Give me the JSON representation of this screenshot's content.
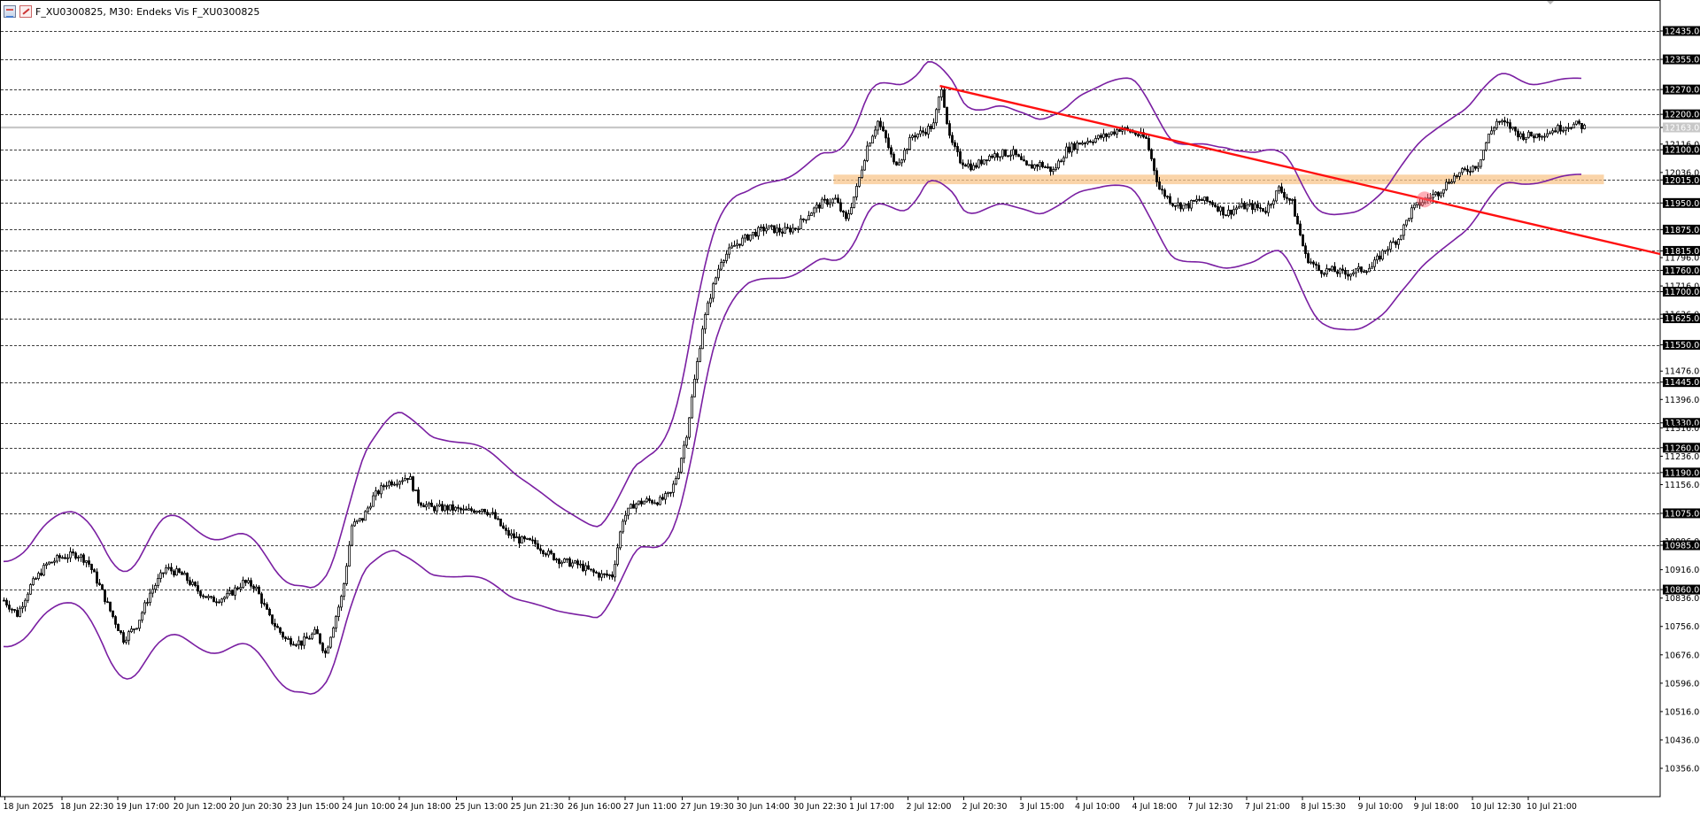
{
  "window": {
    "title": "F_XU0300825, M30:  Endeks Vis F_XU0300825",
    "chart_icon": "chart-window-icon",
    "edit_icon": "edit-pencil-icon"
  },
  "colors": {
    "background": "#ffffff",
    "grid": "#000000",
    "candle": "#000000",
    "bollinger": "#7a1fa2",
    "trendline": "#ff1010",
    "zone": "#f8c58c",
    "marker": "#ff6b7a",
    "current_price_line": "#c8c8c8",
    "current_price_label_bg": "#c8c8c8"
  },
  "chart_data": {
    "type": "candlestick",
    "symbol": "F_XU0300825",
    "timeframe": "M30",
    "y_axis_labels": [
      "12435.00",
      "12355.00",
      "12270.00",
      "12200.00",
      "12163.00",
      "12116.00",
      "12100.00",
      "12036.00",
      "12015.00",
      "11950.00",
      "11875.00",
      "11815.00",
      "11796.00",
      "11760.00",
      "11716.00",
      "11700.00",
      "11636.00",
      "11625.00",
      "11550.00",
      "11476.00",
      "11445.00",
      "11396.00",
      "11330.00",
      "11316.00",
      "11260.00",
      "11236.00",
      "11190.00",
      "11156.00",
      "11075.00",
      "10996.00",
      "10985.00",
      "10916.00",
      "10860.00",
      "10836.00",
      "10756.00",
      "10676.00",
      "10596.00",
      "10516.00",
      "10436.00",
      "10356.00"
    ],
    "highlighted_levels": [
      "12435.00",
      "12355.00",
      "12270.00",
      "12200.00",
      "12100.00",
      "12015.00",
      "11950.00",
      "11875.00",
      "11815.00",
      "11760.00",
      "11700.00",
      "11625.00",
      "11550.00",
      "11445.00",
      "11330.00",
      "11260.00",
      "11190.00",
      "11075.00",
      "10985.00",
      "10860.00"
    ],
    "horizontal_levels": [
      12435,
      12355,
      12270,
      12200,
      12100,
      12015,
      11950,
      11875,
      11815,
      11760,
      11700,
      11625,
      11550,
      11445,
      11330,
      11260,
      11190,
      11075,
      10985,
      10860
    ],
    "current_price": "12163.00",
    "current_price_value": 12163,
    "y_range": [
      10310,
      12480
    ],
    "x_axis_labels": [
      "18 Jun 2025",
      "18 Jun 22:30",
      "19 Jun 17:00",
      "20 Jun 12:00",
      "20 Jun 20:30",
      "23 Jun 15:00",
      "24 Jun 10:00",
      "24 Jun 18:00",
      "25 Jun 13:00",
      "25 Jun 21:30",
      "26 Jun 16:00",
      "27 Jun 11:00",
      "27 Jun 19:30",
      "30 Jun 14:00",
      "30 Jun 22:30",
      "1 Jul 17:00",
      "2 Jul 12:00",
      "2 Jul 20:30",
      "3 Jul 15:00",
      "4 Jul 10:00",
      "4 Jul 18:00",
      "7 Jul 12:30",
      "7 Jul 21:00",
      "8 Jul 15:30",
      "9 Jul 10:00",
      "9 Jul 18:00",
      "10 Jul 12:30",
      "10 Jul 21:00"
    ],
    "price_path": [
      [
        0,
        10830
      ],
      [
        10,
        10790
      ],
      [
        20,
        10870
      ],
      [
        32,
        10930
      ],
      [
        42,
        10950
      ],
      [
        55,
        10960
      ],
      [
        63,
        10940
      ],
      [
        72,
        10870
      ],
      [
        80,
        10800
      ],
      [
        90,
        10720
      ],
      [
        100,
        10760
      ],
      [
        110,
        10850
      ],
      [
        122,
        10920
      ],
      [
        135,
        10900
      ],
      [
        145,
        10860
      ],
      [
        156,
        10830
      ],
      [
        168,
        10840
      ],
      [
        180,
        10880
      ],
      [
        189,
        10870
      ],
      [
        200,
        10780
      ],
      [
        212,
        10720
      ],
      [
        224,
        10710
      ],
      [
        235,
        10740
      ],
      [
        242,
        10680
      ],
      [
        248,
        10760
      ],
      [
        255,
        10850
      ],
      [
        262,
        11040
      ],
      [
        270,
        11060
      ],
      [
        278,
        11120
      ],
      [
        288,
        11160
      ],
      [
        298,
        11170
      ],
      [
        305,
        11180
      ],
      [
        312,
        11110
      ],
      [
        322,
        11090
      ],
      [
        335,
        11090
      ],
      [
        348,
        11080
      ],
      [
        360,
        11090
      ],
      [
        368,
        11070
      ],
      [
        378,
        11020
      ],
      [
        388,
        11000
      ],
      [
        400,
        10990
      ],
      [
        410,
        10960
      ],
      [
        420,
        10940
      ],
      [
        432,
        10930
      ],
      [
        442,
        10910
      ],
      [
        450,
        10900
      ],
      [
        458,
        10900
      ],
      [
        466,
        11060
      ],
      [
        474,
        11100
      ],
      [
        484,
        11110
      ],
      [
        494,
        11110
      ],
      [
        502,
        11130
      ],
      [
        508,
        11200
      ],
      [
        514,
        11300
      ],
      [
        520,
        11450
      ],
      [
        526,
        11600
      ],
      [
        532,
        11690
      ],
      [
        540,
        11790
      ],
      [
        550,
        11830
      ],
      [
        562,
        11860
      ],
      [
        574,
        11880
      ],
      [
        586,
        11870
      ],
      [
        596,
        11880
      ],
      [
        606,
        11920
      ],
      [
        616,
        11950
      ],
      [
        626,
        11960
      ],
      [
        634,
        11900
      ],
      [
        642,
        11990
      ],
      [
        650,
        12110
      ],
      [
        658,
        12180
      ],
      [
        664,
        12130
      ],
      [
        670,
        12060
      ],
      [
        676,
        12080
      ],
      [
        684,
        12140
      ],
      [
        692,
        12150
      ],
      [
        700,
        12170
      ],
      [
        706,
        12280
      ],
      [
        712,
        12130
      ],
      [
        720,
        12070
      ],
      [
        730,
        12050
      ],
      [
        740,
        12080
      ],
      [
        750,
        12090
      ],
      [
        760,
        12090
      ],
      [
        770,
        12050
      ],
      [
        780,
        12060
      ],
      [
        790,
        12040
      ],
      [
        800,
        12100
      ],
      [
        810,
        12120
      ],
      [
        820,
        12130
      ],
      [
        830,
        12140
      ],
      [
        840,
        12160
      ],
      [
        850,
        12150
      ],
      [
        860,
        12130
      ],
      [
        870,
        11990
      ],
      [
        880,
        11950
      ],
      [
        890,
        11940
      ],
      [
        900,
        11960
      ],
      [
        910,
        11950
      ],
      [
        920,
        11920
      ],
      [
        930,
        11940
      ],
      [
        940,
        11940
      ],
      [
        950,
        11930
      ],
      [
        960,
        11990
      ],
      [
        970,
        11950
      ],
      [
        980,
        11800
      ],
      [
        990,
        11760
      ],
      [
        1000,
        11760
      ],
      [
        1010,
        11750
      ],
      [
        1020,
        11760
      ],
      [
        1030,
        11770
      ],
      [
        1040,
        11820
      ],
      [
        1050,
        11850
      ],
      [
        1060,
        11930
      ],
      [
        1070,
        11960
      ],
      [
        1080,
        11980
      ],
      [
        1090,
        12020
      ],
      [
        1100,
        12040
      ],
      [
        1110,
        12060
      ],
      [
        1118,
        12140
      ],
      [
        1124,
        12180
      ],
      [
        1132,
        12170
      ],
      [
        1142,
        12140
      ],
      [
        1152,
        12140
      ],
      [
        1162,
        12150
      ],
      [
        1170,
        12160
      ],
      [
        1178,
        12170
      ],
      [
        1186,
        12170
      ],
      [
        1190,
        12163
      ]
    ],
    "band_width_path": [
      [
        0,
        120
      ],
      [
        60,
        130
      ],
      [
        120,
        170
      ],
      [
        200,
        150
      ],
      [
        260,
        150
      ],
      [
        300,
        200
      ],
      [
        380,
        180
      ],
      [
        440,
        130
      ],
      [
        480,
        120
      ],
      [
        520,
        180
      ],
      [
        560,
        130
      ],
      [
        620,
        150
      ],
      [
        680,
        180
      ],
      [
        740,
        140
      ],
      [
        800,
        130
      ],
      [
        860,
        160
      ],
      [
        920,
        170
      ],
      [
        960,
        140
      ],
      [
        1000,
        160
      ],
      [
        1060,
        180
      ],
      [
        1110,
        170
      ],
      [
        1150,
        140
      ],
      [
        1190,
        135
      ]
    ],
    "trendline": {
      "x1": 705,
      "y1": 12280,
      "x2": 1260,
      "y2": 11795
    },
    "support_zone": {
      "x1": 625,
      "y1": 12030,
      "x2": 1205,
      "y2": 12003
    },
    "marker_point": {
      "x": 1070,
      "y": 11960
    },
    "x_tick_positions": [
      1,
      44,
      86,
      129,
      171,
      214,
      256,
      298,
      341,
      383,
      426,
      468,
      511,
      553,
      596,
      638,
      681,
      723,
      766,
      808,
      851,
      893,
      936,
      978,
      1021,
      1063,
      1106,
      1148
    ]
  }
}
